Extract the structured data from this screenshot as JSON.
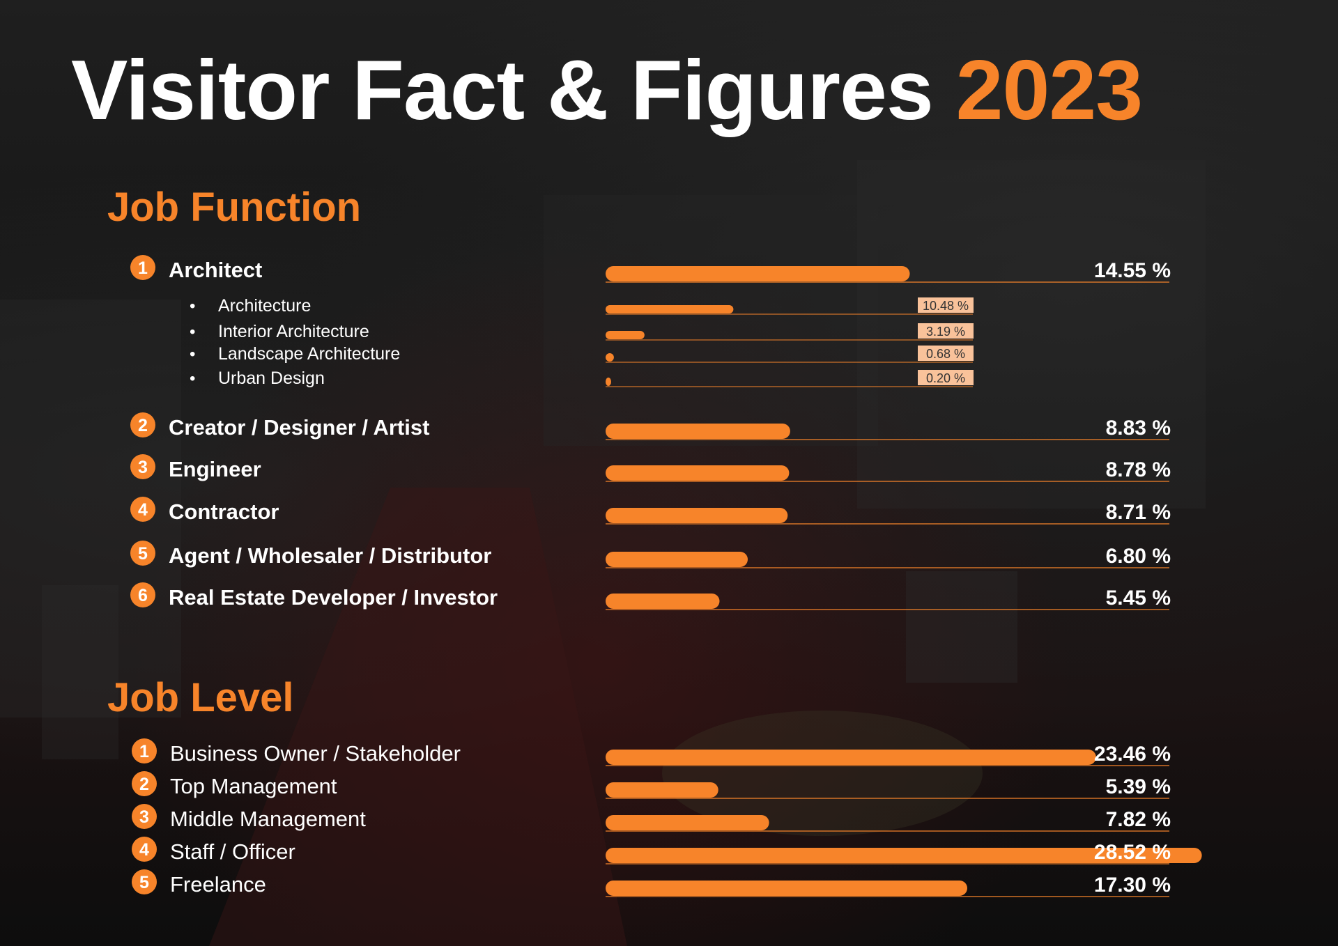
{
  "page": {
    "title_main": "Visitor Fact & Figures",
    "title_year": "2023"
  },
  "colors": {
    "accent": "#f7842a",
    "text": "#ffffff",
    "sub_label_bg": "#f9c29a",
    "sub_label_text": "#333333"
  },
  "chart_data": [
    {
      "type": "bar",
      "title": "Job Function",
      "categories": [
        "Architect",
        "Creator / Designer / Artist",
        "Engineer",
        "Contractor",
        "Agent / Wholesaler / Distributor",
        "Real Estate Developer / Investor"
      ],
      "ranks": [
        "1",
        "2",
        "3",
        "4",
        "5",
        "6"
      ],
      "values": [
        14.55,
        8.83,
        8.78,
        8.71,
        6.8,
        5.45
      ],
      "value_labels": [
        "14.55 %",
        "8.83 %",
        "8.78 %",
        "8.71 %",
        "6.80 %",
        "5.45 %"
      ],
      "unit": "%",
      "sub_breakdown": {
        "parent": "Architect",
        "bullet": "•",
        "categories": [
          "Architecture",
          "Interior Architecture",
          "Landscape Architecture",
          "Urban Design"
        ],
        "values": [
          10.48,
          3.19,
          0.68,
          0.2
        ],
        "value_labels": [
          "10.48 %",
          "3.19 %",
          "0.68 %",
          "0.20 %"
        ]
      }
    },
    {
      "type": "bar",
      "title": "Job Level",
      "categories": [
        "Business Owner / Stakeholder",
        "Top Management",
        "Middle Management",
        "Staff / Officer",
        "Freelance"
      ],
      "ranks": [
        "1",
        "2",
        "3",
        "4",
        "5"
      ],
      "values": [
        23.46,
        5.39,
        7.82,
        28.52,
        17.3
      ],
      "value_labels": [
        "23.46 %",
        "5.39 %",
        "7.82 %",
        "28.52 %",
        "17.30 %"
      ],
      "unit": "%"
    }
  ]
}
